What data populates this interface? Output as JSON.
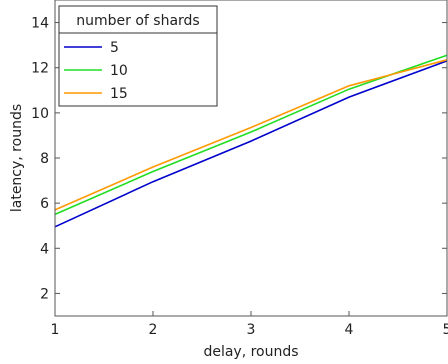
{
  "chart_data": {
    "type": "line",
    "title": "",
    "xlabel": "delay, rounds",
    "ylabel": "latency, rounds",
    "xlim": [
      1,
      5
    ],
    "ylim": [
      1,
      15
    ],
    "x_ticks": [
      1,
      2,
      3,
      4,
      5
    ],
    "y_ticks": [
      2,
      4,
      6,
      8,
      10,
      12,
      14
    ],
    "grid": false,
    "legend": {
      "title": "number of shards",
      "placement": "top-left"
    },
    "x": [
      1,
      2,
      3,
      4,
      5
    ],
    "series": [
      {
        "name": "5",
        "color": "#0000cc",
        "values": [
          4.95,
          6.95,
          8.75,
          10.7,
          12.3
        ]
      },
      {
        "name": "10",
        "color": "#22dd22",
        "values": [
          5.5,
          7.4,
          9.15,
          11.05,
          12.55
        ]
      },
      {
        "name": "15",
        "color": "#ff9900",
        "values": [
          5.7,
          7.6,
          9.35,
          11.2,
          12.35
        ]
      }
    ]
  }
}
